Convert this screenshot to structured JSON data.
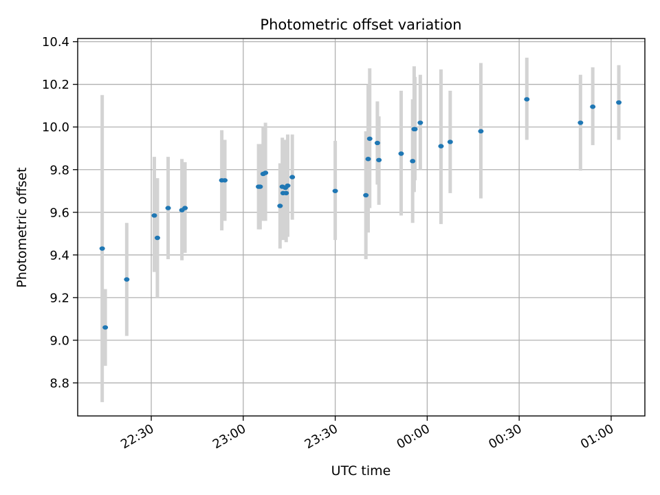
{
  "chart_data": {
    "type": "scatter",
    "title": "Photometric offset variation",
    "xlabel": "UTC time",
    "ylabel": "Photometric offset",
    "x_ticks": [
      "22:30",
      "23:00",
      "23:30",
      "00:00",
      "00:30",
      "01:00"
    ],
    "x_tick_times": [
      "2000-01-01T22:30",
      "2000-01-01T23:00",
      "2000-01-01T23:30",
      "2000-01-02T00:00",
      "2000-01-02T00:30",
      "2000-01-02T01:00"
    ],
    "y_ticks": [
      "8.8",
      "9.0",
      "9.2",
      "9.4",
      "9.6",
      "9.8",
      "10.0",
      "10.2",
      "10.4"
    ],
    "xlim": [
      "2000-01-01T22:06:00",
      "2000-01-02T01:11:00"
    ],
    "ylim": [
      8.645,
      10.415
    ],
    "grid": true,
    "colors": {
      "point": "#1f77b4",
      "errorbar": "#d3d3d3",
      "grid": "#b0b0b0"
    },
    "points": [
      {
        "time": "2000-01-01T22:14:00",
        "y": 9.43,
        "err_low": 8.71,
        "err_high": 10.15
      },
      {
        "time": "2000-01-01T22:15:00",
        "y": 9.06,
        "err_low": 8.88,
        "err_high": 9.24
      },
      {
        "time": "2000-01-01T22:22:00",
        "y": 9.285,
        "err_low": 9.02,
        "err_high": 9.55
      },
      {
        "time": "2000-01-01T22:31:00",
        "y": 9.585,
        "err_low": 9.32,
        "err_high": 9.86
      },
      {
        "time": "2000-01-01T22:32:00",
        "y": 9.48,
        "err_low": 9.2,
        "err_high": 9.76
      },
      {
        "time": "2000-01-01T22:35:30",
        "y": 9.62,
        "err_low": 9.38,
        "err_high": 9.86
      },
      {
        "time": "2000-01-01T22:40:00",
        "y": 9.61,
        "err_low": 9.375,
        "err_high": 9.85
      },
      {
        "time": "2000-01-01T22:41:00",
        "y": 9.62,
        "err_low": 9.41,
        "err_high": 9.835
      },
      {
        "time": "2000-01-01T22:53:00",
        "y": 9.75,
        "err_low": 9.515,
        "err_high": 9.985
      },
      {
        "time": "2000-01-01T22:54:00",
        "y": 9.75,
        "err_low": 9.56,
        "err_high": 9.94
      },
      {
        "time": "2000-01-01T23:05:00",
        "y": 9.72,
        "err_low": 9.52,
        "err_high": 9.92
      },
      {
        "time": "2000-01-01T23:05:30",
        "y": 9.72,
        "err_low": 9.52,
        "err_high": 9.92
      },
      {
        "time": "2000-01-01T23:06:30",
        "y": 9.78,
        "err_low": 9.56,
        "err_high": 10.0
      },
      {
        "time": "2000-01-01T23:07:15",
        "y": 9.785,
        "err_low": 9.56,
        "err_high": 10.02
      },
      {
        "time": "2000-01-01T23:12:00",
        "y": 9.63,
        "err_low": 9.43,
        "err_high": 9.83
      },
      {
        "time": "2000-01-01T23:12:45",
        "y": 9.72,
        "err_low": 9.5,
        "err_high": 9.95
      },
      {
        "time": "2000-01-01T23:13:00",
        "y": 9.69,
        "err_low": 9.47,
        "err_high": 9.91
      },
      {
        "time": "2000-01-01T23:13:45",
        "y": 9.715,
        "err_low": 9.48,
        "err_high": 9.94
      },
      {
        "time": "2000-01-01T23:14:00",
        "y": 9.69,
        "err_low": 9.46,
        "err_high": 9.92
      },
      {
        "time": "2000-01-01T23:14:30",
        "y": 9.725,
        "err_low": 9.485,
        "err_high": 9.965
      },
      {
        "time": "2000-01-01T23:16:00",
        "y": 9.765,
        "err_low": 9.565,
        "err_high": 9.965
      },
      {
        "time": "2000-01-01T23:30:00",
        "y": 9.7,
        "err_low": 9.47,
        "err_high": 9.935
      },
      {
        "time": "2000-01-01T23:40:00",
        "y": 9.68,
        "err_low": 9.38,
        "err_high": 9.98
      },
      {
        "time": "2000-01-01T23:40:45",
        "y": 9.85,
        "err_low": 9.505,
        "err_high": 10.2
      },
      {
        "time": "2000-01-01T23:41:15",
        "y": 9.945,
        "err_low": 9.62,
        "err_high": 10.275
      },
      {
        "time": "2000-01-01T23:43:45",
        "y": 9.925,
        "err_low": 9.73,
        "err_high": 10.12
      },
      {
        "time": "2000-01-01T23:44:15",
        "y": 9.845,
        "err_low": 9.635,
        "err_high": 10.05
      },
      {
        "time": "2000-01-01T23:51:30",
        "y": 9.875,
        "err_low": 9.585,
        "err_high": 10.17
      },
      {
        "time": "2000-01-01T23:55:15",
        "y": 9.84,
        "err_low": 9.55,
        "err_high": 10.13
      },
      {
        "time": "2000-01-01T23:55:45",
        "y": 9.99,
        "err_low": 9.695,
        "err_high": 10.285
      },
      {
        "time": "2000-01-01T23:56:00",
        "y": 9.99,
        "err_low": 9.75,
        "err_high": 10.235
      },
      {
        "time": "2000-01-01T23:57:45",
        "y": 10.02,
        "err_low": 9.8,
        "err_high": 10.245
      },
      {
        "time": "2000-01-02T00:04:30",
        "y": 9.91,
        "err_low": 9.545,
        "err_high": 10.27
      },
      {
        "time": "2000-01-02T00:07:30",
        "y": 9.93,
        "err_low": 9.69,
        "err_high": 10.17
      },
      {
        "time": "2000-01-02T00:17:30",
        "y": 9.98,
        "err_low": 9.665,
        "err_high": 10.3
      },
      {
        "time": "2000-01-02T00:32:30",
        "y": 10.13,
        "err_low": 9.94,
        "err_high": 10.325
      },
      {
        "time": "2000-01-02T00:50:00",
        "y": 10.02,
        "err_low": 9.795,
        "err_high": 10.245
      },
      {
        "time": "2000-01-02T00:54:00",
        "y": 10.095,
        "err_low": 9.915,
        "err_high": 10.28
      },
      {
        "time": "2000-01-02T01:02:30",
        "y": 10.115,
        "err_low": 9.94,
        "err_high": 10.29
      }
    ]
  }
}
